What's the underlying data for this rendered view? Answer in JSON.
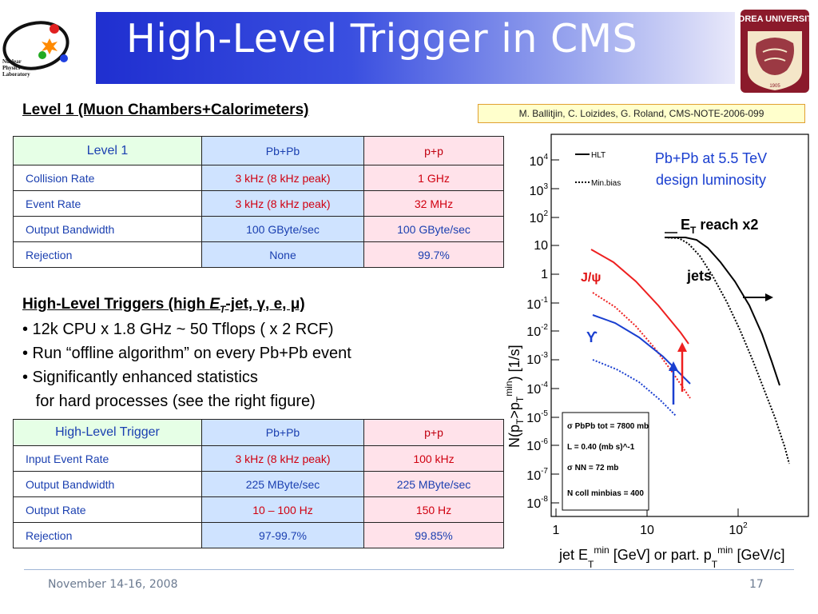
{
  "logo": {
    "lines": [
      "Nuclear",
      "Physics",
      "Laboratory"
    ]
  },
  "title": "High-Level Trigger in CMS",
  "university_logo": {
    "text": "KOREA UNIVERSITY",
    "year": "1905"
  },
  "reference": "M. Ballitjin, C. Loizides, G. Roland, CMS-NOTE-2006-099",
  "level1": {
    "heading": "Level 1 (Muon Chambers+Calorimeters)",
    "header": [
      "Level 1",
      "Pb+Pb",
      "p+p"
    ],
    "rows": [
      [
        "Collision  Rate",
        "3 kHz (8 kHz peak)",
        "1 GHz"
      ],
      [
        "Event Rate",
        "3 kHz (8 kHz peak)",
        "32 MHz"
      ],
      [
        "Output Bandwidth",
        "100 GByte/sec",
        "100 GByte/sec"
      ],
      [
        "Rejection",
        "None",
        "99.7%"
      ]
    ]
  },
  "hlt": {
    "heading_pre": "High-Level Triggers (high ",
    "heading_e": "E",
    "heading_sub": "T",
    "heading_post": "-jet, γ, e, μ)",
    "bullets": [
      "• 12k CPU x 1.8 GHz ~ 50 Tflops ( x 2 RCF)",
      "• Run “offline algorithm” on every Pb+Pb event",
      "• Significantly enhanced statistics",
      "   for hard processes (see the right figure)"
    ],
    "header": [
      "High-Level Trigger",
      "Pb+Pb",
      "p+p"
    ],
    "rows": [
      [
        "Input Event Rate",
        "3 kHz (8 kHz peak)",
        "100 kHz"
      ],
      [
        "Output Bandwidth",
        "225 MByte/sec",
        "225 MByte/sec"
      ],
      [
        "Output Rate",
        "10 – 100 Hz",
        "150 Hz"
      ],
      [
        "Rejection",
        "97-99.7%",
        "99.85%"
      ]
    ]
  },
  "plot": {
    "legend_hlt": "HLT",
    "legend_minbias": "Min.bias",
    "annotation_1": "Pb+Pb at 5.5 TeV",
    "annotation_2": "design luminosity",
    "et_reach_pre": "E",
    "et_reach_sub": "T",
    "et_reach_post": " reach x2",
    "jets": "jets",
    "jpsi": "J/ψ",
    "upsilon": "ϒ",
    "y_ticks": [
      "10^4",
      "10^3",
      "10^2",
      "10",
      "1",
      "10^-1",
      "10^-2",
      "10^-3",
      "10^-4",
      "10^-5",
      "10^-6",
      "10^-7",
      "10^-8"
    ],
    "x_ticks": [
      "1",
      "10",
      "10^2"
    ],
    "info_sigma_tot": "σ PbPb tot = 7800 mb",
    "info_L": "L = 0.40 (mb s)^-1",
    "info_sigma_nn": "σ NN = 72 mb",
    "info_ncoll": "N coll minbias = 400"
  },
  "footer": {
    "date": "November 14-16, 2008",
    "page": "17"
  }
}
